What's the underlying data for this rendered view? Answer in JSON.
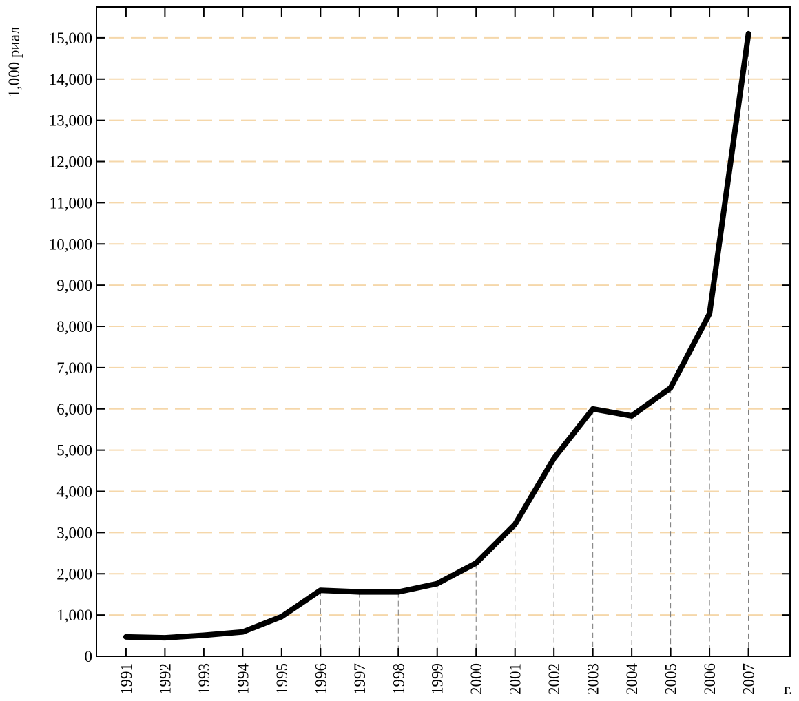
{
  "chart_data": {
    "type": "line",
    "ylabel": "1,000 риал",
    "xlabel": "г.",
    "xlim": [
      1990.24,
      2008.07
    ],
    "ylim": [
      0,
      15750
    ],
    "x_tick_labels": [
      "1991",
      "1992",
      "1993",
      "1994",
      "1995",
      "1996",
      "1997",
      "1998",
      "1999",
      "2000",
      "2001",
      "2002",
      "2003",
      "2004",
      "2005",
      "2006",
      "2007"
    ],
    "y_tick_labels": [
      "0",
      "1,000",
      "2,000",
      "3,000",
      "4,000",
      "5,000",
      "6,000",
      "7,000",
      "8,000",
      "9,000",
      "10,000",
      "11,000",
      "12,000",
      "13,000",
      "14,000",
      "15,000"
    ],
    "y_ticks": [
      0,
      1000,
      2000,
      3000,
      4000,
      5000,
      6000,
      7000,
      8000,
      9000,
      10000,
      11000,
      12000,
      13000,
      14000,
      15000
    ],
    "grid": true,
    "series": [
      {
        "x": [
          1991,
          1992,
          1993,
          1994,
          1995,
          1996,
          1997,
          1998,
          1999,
          2000,
          2001,
          2002,
          2003,
          2004,
          2005,
          2006,
          2007
        ],
        "values": [
          470,
          450,
          510,
          590,
          960,
          1600,
          1560,
          1560,
          1760,
          2260,
          3200,
          4800,
          6000,
          5830,
          6510,
          8310,
          15100
        ]
      }
    ]
  },
  "colors": {
    "line": "#000000",
    "grid": "#f5d7aa",
    "drop_lines": "#777777",
    "axes": "#000000"
  }
}
